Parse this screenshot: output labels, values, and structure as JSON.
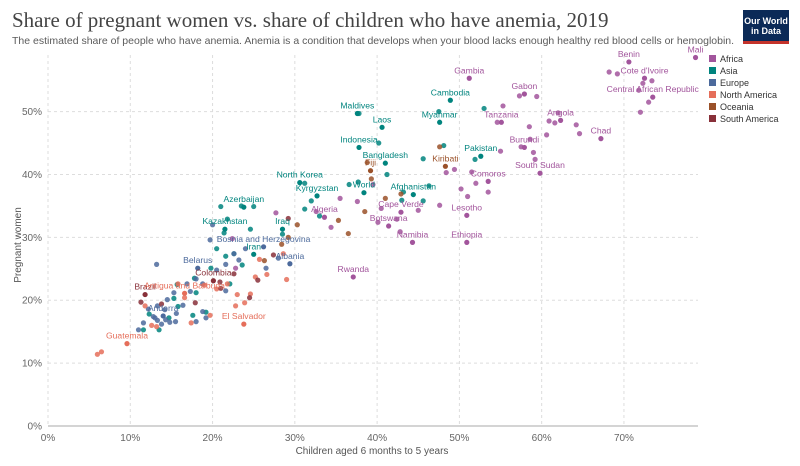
{
  "header": {
    "title": "Share of pregnant women vs. share of children who have anemia, 2019",
    "subtitle": "The estimated share of people who have anemia. Anemia is a condition that develops when your blood lacks enough healthy red blood cells or hemoglobin.",
    "logo_line1": "Our World",
    "logo_line2": "in Data"
  },
  "colors": {
    "Africa": "#a2559c",
    "Asia": "#00847e",
    "Europe": "#4c6a9c",
    "North America": "#e56e5a",
    "Oceania": "#9a5129",
    "South America": "#883039"
  },
  "chart_data": {
    "type": "scatter",
    "title": "Share of pregnant women vs. share of children who have anemia, 2019",
    "xlabel": "Children aged 6 months to 5 years",
    "ylabel": "Pregnant women",
    "xlim": [
      0,
      79
    ],
    "ylim": [
      0,
      59
    ],
    "x_ticks": [
      0,
      10,
      20,
      30,
      40,
      50,
      60,
      70
    ],
    "y_ticks": [
      0,
      10,
      20,
      30,
      40,
      50
    ],
    "x_tick_labels": [
      "0%",
      "10%",
      "20%",
      "30%",
      "40%",
      "50%",
      "60%",
      "70%"
    ],
    "y_tick_labels": [
      "0%",
      "10%",
      "20%",
      "30%",
      "40%",
      "50%"
    ],
    "grid": true,
    "legend": {
      "placement": "top-right",
      "entries": [
        "Africa",
        "Asia",
        "Europe",
        "North America",
        "Oceania",
        "South America"
      ]
    },
    "labeled_points": [
      {
        "name": "Mali",
        "region": "Africa",
        "x": 78.7,
        "y": 58.6
      },
      {
        "name": "Benin",
        "region": "Africa",
        "x": 70.6,
        "y": 57.9
      },
      {
        "name": "Cote d'Ivoire",
        "region": "Africa",
        "x": 72.5,
        "y": 55.3
      },
      {
        "name": "Gambia",
        "region": "Africa",
        "x": 51.2,
        "y": 55.3
      },
      {
        "name": "Gabon",
        "region": "Africa",
        "x": 57.9,
        "y": 52.8
      },
      {
        "name": "Central African Republic",
        "region": "Africa",
        "x": 73.5,
        "y": 52.3
      },
      {
        "name": "Tanzania",
        "region": "Africa",
        "x": 55.1,
        "y": 48.3
      },
      {
        "name": "Angola",
        "region": "Africa",
        "x": 62.3,
        "y": 48.6
      },
      {
        "name": "Chad",
        "region": "Africa",
        "x": 67.2,
        "y": 45.7
      },
      {
        "name": "Burundi",
        "region": "Africa",
        "x": 57.9,
        "y": 44.3
      },
      {
        "name": "South Sudan",
        "region": "Africa",
        "x": 59.8,
        "y": 40.2
      },
      {
        "name": "Comoros",
        "region": "Africa",
        "x": 53.5,
        "y": 38.9
      },
      {
        "name": "Lesotho",
        "region": "Africa",
        "x": 50.9,
        "y": 33.5
      },
      {
        "name": "Algeria",
        "region": "Africa",
        "x": 33.6,
        "y": 33.2
      },
      {
        "name": "Cape Verde",
        "region": "Africa",
        "x": 42.9,
        "y": 34.0
      },
      {
        "name": "Botswana",
        "region": "Africa",
        "x": 41.4,
        "y": 31.8
      },
      {
        "name": "Namibia",
        "region": "Africa",
        "x": 44.3,
        "y": 29.2
      },
      {
        "name": "Ethiopia",
        "region": "Africa",
        "x": 50.9,
        "y": 29.2
      },
      {
        "name": "Rwanda",
        "region": "Africa",
        "x": 37.1,
        "y": 23.7
      },
      {
        "name": "Maldives",
        "region": "Asia",
        "x": 37.6,
        "y": 49.7
      },
      {
        "name": "Cambodia",
        "region": "Asia",
        "x": 48.9,
        "y": 51.8
      },
      {
        "name": "Laos",
        "region": "Asia",
        "x": 40.6,
        "y": 47.5
      },
      {
        "name": "Myanmar",
        "region": "Asia",
        "x": 47.6,
        "y": 48.3
      },
      {
        "name": "Indonesia",
        "region": "Asia",
        "x": 37.8,
        "y": 44.3
      },
      {
        "name": "Pakistan",
        "region": "Asia",
        "x": 52.6,
        "y": 42.9
      },
      {
        "name": "Bangladesh",
        "region": "Asia",
        "x": 41.0,
        "y": 41.8
      },
      {
        "name": "North Korea",
        "region": "Asia",
        "x": 30.6,
        "y": 38.7
      },
      {
        "name": "Kyrgyzstan",
        "region": "Asia",
        "x": 32.7,
        "y": 36.6
      },
      {
        "name": "Afghanistan",
        "region": "Asia",
        "x": 44.4,
        "y": 36.8
      },
      {
        "name": "Azerbaijan",
        "region": "Asia",
        "x": 23.8,
        "y": 34.8
      },
      {
        "name": "Kazakhstan",
        "region": "Asia",
        "x": 21.5,
        "y": 31.3
      },
      {
        "name": "Iraq",
        "region": "Asia",
        "x": 28.5,
        "y": 31.3
      },
      {
        "name": "Iran",
        "region": "Asia",
        "x": 25.0,
        "y": 27.3
      },
      {
        "name": "World",
        "region": "Asia",
        "x": 38.4,
        "y": 37.1
      },
      {
        "name": "Bosnia and Herzegovina",
        "region": "Europe",
        "x": 26.2,
        "y": 28.5
      },
      {
        "name": "Albania",
        "region": "Europe",
        "x": 29.4,
        "y": 25.8
      },
      {
        "name": "Belarus",
        "region": "Europe",
        "x": 18.2,
        "y": 25.1
      },
      {
        "name": "Andorra",
        "region": "Europe",
        "x": 14.0,
        "y": 17.5
      },
      {
        "name": "Fiji",
        "region": "Oceania",
        "x": 39.2,
        "y": 40.6
      },
      {
        "name": "Kiribati",
        "region": "Oceania",
        "x": 48.3,
        "y": 41.3
      },
      {
        "name": "Brazil",
        "region": "South America",
        "x": 11.8,
        "y": 20.9
      },
      {
        "name": "Colombia",
        "region": "South America",
        "x": 20.1,
        "y": 23.1
      },
      {
        "name": "Antigua and Barbuda",
        "region": "North America",
        "x": 16.6,
        "y": 21.1
      },
      {
        "name": "El Salvador",
        "region": "North America",
        "x": 23.8,
        "y": 16.2
      },
      {
        "name": "Guatemala",
        "region": "North America",
        "x": 9.6,
        "y": 13.1
      }
    ],
    "unlabeled_points": [
      {
        "region": "Africa",
        "x": 69.2,
        "y": 56.0
      },
      {
        "region": "Africa",
        "x": 68.2,
        "y": 56.3
      },
      {
        "region": "Africa",
        "x": 72.3,
        "y": 54.5
      },
      {
        "region": "Africa",
        "x": 73.4,
        "y": 54.9
      },
      {
        "region": "Africa",
        "x": 71.8,
        "y": 53.4
      },
      {
        "region": "Africa",
        "x": 73.0,
        "y": 51.5
      },
      {
        "region": "Africa",
        "x": 72.0,
        "y": 49.9
      },
      {
        "region": "Africa",
        "x": 57.3,
        "y": 52.5
      },
      {
        "region": "Africa",
        "x": 59.4,
        "y": 52.4
      },
      {
        "region": "Africa",
        "x": 55.3,
        "y": 50.9
      },
      {
        "region": "Africa",
        "x": 62.0,
        "y": 49.8
      },
      {
        "region": "Africa",
        "x": 54.6,
        "y": 48.3
      },
      {
        "region": "Africa",
        "x": 58.5,
        "y": 47.6
      },
      {
        "region": "Africa",
        "x": 60.9,
        "y": 48.5
      },
      {
        "region": "Africa",
        "x": 61.6,
        "y": 48.2
      },
      {
        "region": "Africa",
        "x": 64.2,
        "y": 47.9
      },
      {
        "region": "Africa",
        "x": 60.6,
        "y": 46.3
      },
      {
        "region": "Africa",
        "x": 64.6,
        "y": 46.5
      },
      {
        "region": "Africa",
        "x": 58.6,
        "y": 45.6
      },
      {
        "region": "Africa",
        "x": 57.5,
        "y": 44.4
      },
      {
        "region": "Africa",
        "x": 59.0,
        "y": 43.5
      },
      {
        "region": "Africa",
        "x": 55.0,
        "y": 43.7
      },
      {
        "region": "Africa",
        "x": 59.2,
        "y": 42.4
      },
      {
        "region": "Africa",
        "x": 49.4,
        "y": 40.8
      },
      {
        "region": "Africa",
        "x": 51.5,
        "y": 40.4
      },
      {
        "region": "Africa",
        "x": 48.4,
        "y": 40.3
      },
      {
        "region": "Africa",
        "x": 52.0,
        "y": 38.6
      },
      {
        "region": "Africa",
        "x": 50.2,
        "y": 37.7
      },
      {
        "region": "Africa",
        "x": 51.0,
        "y": 36.5
      },
      {
        "region": "Africa",
        "x": 47.6,
        "y": 35.1
      },
      {
        "region": "Africa",
        "x": 45.0,
        "y": 34.3
      },
      {
        "region": "Africa",
        "x": 42.4,
        "y": 32.9
      },
      {
        "region": "Africa",
        "x": 40.1,
        "y": 32.4
      },
      {
        "region": "Africa",
        "x": 42.8,
        "y": 30.9
      },
      {
        "region": "Africa",
        "x": 34.4,
        "y": 31.6
      },
      {
        "region": "Africa",
        "x": 32.6,
        "y": 34.1
      },
      {
        "region": "Africa",
        "x": 37.6,
        "y": 35.7
      },
      {
        "region": "Africa",
        "x": 40.5,
        "y": 34.6
      },
      {
        "region": "Africa",
        "x": 39.5,
        "y": 38.4
      },
      {
        "region": "Africa",
        "x": 35.5,
        "y": 36.2
      },
      {
        "region": "Africa",
        "x": 53.5,
        "y": 37.2
      },
      {
        "region": "Africa",
        "x": 27.7,
        "y": 33.9
      },
      {
        "region": "Africa",
        "x": 22.4,
        "y": 29.8
      },
      {
        "region": "Africa",
        "x": 22.8,
        "y": 25.1
      },
      {
        "region": "Asia",
        "x": 37.8,
        "y": 49.7
      },
      {
        "region": "Asia",
        "x": 47.5,
        "y": 50.0
      },
      {
        "region": "Asia",
        "x": 53.0,
        "y": 50.5
      },
      {
        "region": "Asia",
        "x": 40.2,
        "y": 45.0
      },
      {
        "region": "Asia",
        "x": 48.1,
        "y": 44.6
      },
      {
        "region": "Asia",
        "x": 51.9,
        "y": 42.4
      },
      {
        "region": "Asia",
        "x": 45.6,
        "y": 42.5
      },
      {
        "region": "Asia",
        "x": 41.2,
        "y": 40.0
      },
      {
        "region": "Asia",
        "x": 37.7,
        "y": 38.8
      },
      {
        "region": "Asia",
        "x": 31.2,
        "y": 38.6
      },
      {
        "region": "Asia",
        "x": 36.6,
        "y": 38.4
      },
      {
        "region": "Asia",
        "x": 43.2,
        "y": 37.2
      },
      {
        "region": "Asia",
        "x": 46.3,
        "y": 38.2
      },
      {
        "region": "Asia",
        "x": 43.0,
        "y": 35.9
      },
      {
        "region": "Asia",
        "x": 45.6,
        "y": 35.8
      },
      {
        "region": "Asia",
        "x": 32.0,
        "y": 35.8
      },
      {
        "region": "Asia",
        "x": 31.2,
        "y": 34.5
      },
      {
        "region": "Asia",
        "x": 33.0,
        "y": 33.4
      },
      {
        "region": "Asia",
        "x": 25.0,
        "y": 34.9
      },
      {
        "region": "Asia",
        "x": 23.5,
        "y": 35.0
      },
      {
        "region": "Asia",
        "x": 21.0,
        "y": 34.9
      },
      {
        "region": "Asia",
        "x": 21.8,
        "y": 32.9
      },
      {
        "region": "Asia",
        "x": 24.6,
        "y": 31.3
      },
      {
        "region": "Asia",
        "x": 21.4,
        "y": 30.7
      },
      {
        "region": "Asia",
        "x": 28.5,
        "y": 30.5
      },
      {
        "region": "Asia",
        "x": 20.5,
        "y": 28.2
      },
      {
        "region": "Asia",
        "x": 21.6,
        "y": 27.0
      },
      {
        "region": "Asia",
        "x": 22.6,
        "y": 27.4
      },
      {
        "region": "Asia",
        "x": 23.6,
        "y": 25.6
      },
      {
        "region": "Asia",
        "x": 19.8,
        "y": 25.1
      },
      {
        "region": "Asia",
        "x": 17.8,
        "y": 23.5
      },
      {
        "region": "Asia",
        "x": 15.7,
        "y": 22.5
      },
      {
        "region": "Asia",
        "x": 15.3,
        "y": 20.3
      },
      {
        "region": "Asia",
        "x": 18.0,
        "y": 21.2
      },
      {
        "region": "Asia",
        "x": 22.1,
        "y": 22.6
      },
      {
        "region": "Asia",
        "x": 15.8,
        "y": 19.0
      },
      {
        "region": "Asia",
        "x": 17.6,
        "y": 17.6
      },
      {
        "region": "Asia",
        "x": 19.2,
        "y": 18.1
      },
      {
        "region": "Asia",
        "x": 12.3,
        "y": 17.8
      },
      {
        "region": "Asia",
        "x": 13.5,
        "y": 15.3
      },
      {
        "region": "Asia",
        "x": 11.6,
        "y": 15.3
      },
      {
        "region": "Asia",
        "x": 14.7,
        "y": 17.2
      },
      {
        "region": "Europe",
        "x": 13.2,
        "y": 25.7
      },
      {
        "region": "Europe",
        "x": 20.0,
        "y": 32.0
      },
      {
        "region": "Europe",
        "x": 19.7,
        "y": 29.6
      },
      {
        "region": "Europe",
        "x": 22.6,
        "y": 27.4
      },
      {
        "region": "Europe",
        "x": 23.2,
        "y": 26.4
      },
      {
        "region": "Europe",
        "x": 24.0,
        "y": 28.2
      },
      {
        "region": "Europe",
        "x": 26.5,
        "y": 25.1
      },
      {
        "region": "Europe",
        "x": 28.0,
        "y": 26.7
      },
      {
        "region": "Europe",
        "x": 21.6,
        "y": 25.7
      },
      {
        "region": "Europe",
        "x": 20.5,
        "y": 24.8
      },
      {
        "region": "Europe",
        "x": 18.0,
        "y": 23.4
      },
      {
        "region": "Europe",
        "x": 18.8,
        "y": 22.6
      },
      {
        "region": "Europe",
        "x": 16.9,
        "y": 22.6
      },
      {
        "region": "Europe",
        "x": 17.3,
        "y": 21.4
      },
      {
        "region": "Europe",
        "x": 15.3,
        "y": 21.2
      },
      {
        "region": "Europe",
        "x": 14.5,
        "y": 20.1
      },
      {
        "region": "Europe",
        "x": 13.3,
        "y": 19.1
      },
      {
        "region": "Europe",
        "x": 14.2,
        "y": 18.5
      },
      {
        "region": "Europe",
        "x": 15.6,
        "y": 17.9
      },
      {
        "region": "Europe",
        "x": 14.3,
        "y": 16.9
      },
      {
        "region": "Europe",
        "x": 13.3,
        "y": 16.8
      },
      {
        "region": "Europe",
        "x": 13.0,
        "y": 17.2
      },
      {
        "region": "Europe",
        "x": 13.8,
        "y": 16.2
      },
      {
        "region": "Europe",
        "x": 14.8,
        "y": 16.5
      },
      {
        "region": "Europe",
        "x": 15.5,
        "y": 16.6
      },
      {
        "region": "Europe",
        "x": 12.8,
        "y": 17.4
      },
      {
        "region": "Europe",
        "x": 11.6,
        "y": 16.4
      },
      {
        "region": "Europe",
        "x": 11.0,
        "y": 15.3
      },
      {
        "region": "Europe",
        "x": 12.2,
        "y": 18.6
      },
      {
        "region": "Europe",
        "x": 16.4,
        "y": 19.2
      },
      {
        "region": "Europe",
        "x": 18.8,
        "y": 18.2
      },
      {
        "region": "Europe",
        "x": 19.2,
        "y": 17.2
      },
      {
        "region": "Europe",
        "x": 18.0,
        "y": 16.6
      },
      {
        "region": "Europe",
        "x": 21.6,
        "y": 21.5
      },
      {
        "region": "North America",
        "x": 6.0,
        "y": 11.4
      },
      {
        "region": "North America",
        "x": 6.5,
        "y": 11.8
      },
      {
        "region": "North America",
        "x": 11.8,
        "y": 19.1
      },
      {
        "region": "North America",
        "x": 12.6,
        "y": 16.0
      },
      {
        "region": "North America",
        "x": 13.2,
        "y": 15.8
      },
      {
        "region": "North America",
        "x": 15.8,
        "y": 22.6
      },
      {
        "region": "North America",
        "x": 16.6,
        "y": 20.4
      },
      {
        "region": "North America",
        "x": 17.4,
        "y": 16.4
      },
      {
        "region": "North America",
        "x": 19.7,
        "y": 17.6
      },
      {
        "region": "North America",
        "x": 20.5,
        "y": 21.8
      },
      {
        "region": "North America",
        "x": 21.8,
        "y": 22.6
      },
      {
        "region": "North America",
        "x": 23.0,
        "y": 20.9
      },
      {
        "region": "North America",
        "x": 23.9,
        "y": 19.6
      },
      {
        "region": "North America",
        "x": 24.6,
        "y": 21.0
      },
      {
        "region": "North America",
        "x": 22.8,
        "y": 19.1
      },
      {
        "region": "North America",
        "x": 25.2,
        "y": 23.7
      },
      {
        "region": "North America",
        "x": 29.0,
        "y": 23.3
      },
      {
        "region": "North America",
        "x": 28.6,
        "y": 27.4
      },
      {
        "region": "North America",
        "x": 25.7,
        "y": 26.5
      },
      {
        "region": "North America",
        "x": 26.6,
        "y": 24.1
      },
      {
        "region": "North America",
        "x": 19.0,
        "y": 22.4
      },
      {
        "region": "Oceania",
        "x": 35.3,
        "y": 32.7
      },
      {
        "region": "Oceania",
        "x": 38.5,
        "y": 34.1
      },
      {
        "region": "Oceania",
        "x": 41.0,
        "y": 36.2
      },
      {
        "region": "Oceania",
        "x": 42.9,
        "y": 36.9
      },
      {
        "region": "Oceania",
        "x": 47.6,
        "y": 44.4
      },
      {
        "region": "Oceania",
        "x": 39.3,
        "y": 39.3
      },
      {
        "region": "Oceania",
        "x": 38.8,
        "y": 41.9
      },
      {
        "region": "Oceania",
        "x": 36.5,
        "y": 30.6
      },
      {
        "region": "Oceania",
        "x": 30.3,
        "y": 32.0
      },
      {
        "region": "Oceania",
        "x": 26.3,
        "y": 26.3
      },
      {
        "region": "Oceania",
        "x": 29.2,
        "y": 30.0
      },
      {
        "region": "Oceania",
        "x": 28.4,
        "y": 28.9
      },
      {
        "region": "South America",
        "x": 11.3,
        "y": 19.7
      },
      {
        "region": "South America",
        "x": 13.8,
        "y": 19.4
      },
      {
        "region": "South America",
        "x": 17.9,
        "y": 19.6
      },
      {
        "region": "South America",
        "x": 21.0,
        "y": 21.9
      },
      {
        "region": "South America",
        "x": 24.5,
        "y": 20.4
      },
      {
        "region": "South America",
        "x": 27.4,
        "y": 27.2
      },
      {
        "region": "South America",
        "x": 29.2,
        "y": 33.0
      },
      {
        "region": "South America",
        "x": 25.5,
        "y": 23.2
      },
      {
        "region": "South America",
        "x": 22.6,
        "y": 24.2
      },
      {
        "region": "South America",
        "x": 20.9,
        "y": 22.9
      }
    ]
  }
}
